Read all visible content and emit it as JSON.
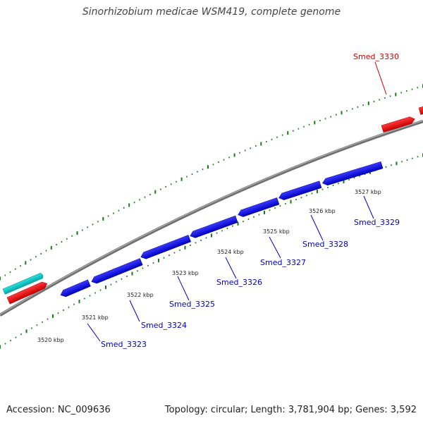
{
  "header": {
    "title": "Sinorhizobium medicae WSM419, complete genome"
  },
  "footer": {
    "accession": "Accession: NC_009636",
    "summary": "Topology: circular; Length: 3,781,904 bp; Genes: 3,592"
  },
  "colors": {
    "backbone": "#7a7a7a",
    "forward_gene": "#ff0000",
    "reverse_gene": "#0000ff",
    "other_feature": "#00c8c8",
    "tick": "#1a7a1a",
    "label_forward": "#cc0000",
    "label_reverse": "#0000cc"
  },
  "scale": {
    "unit": "kbp",
    "labels": [
      "3520 kbp",
      "3521 kbp",
      "3522 kbp",
      "3523 kbp",
      "3524 kbp",
      "3525 kbp",
      "3526 kbp",
      "3527 kbp"
    ]
  },
  "genes": [
    {
      "name": "Smed_3323",
      "strand": "reverse"
    },
    {
      "name": "Smed_3324",
      "strand": "reverse"
    },
    {
      "name": "Smed_3325",
      "strand": "reverse"
    },
    {
      "name": "Smed_3326",
      "strand": "reverse"
    },
    {
      "name": "Smed_3327",
      "strand": "reverse"
    },
    {
      "name": "Smed_3328",
      "strand": "reverse"
    },
    {
      "name": "Smed_3329",
      "strand": "reverse"
    },
    {
      "name": "Smed_3330",
      "strand": "forward"
    }
  ]
}
